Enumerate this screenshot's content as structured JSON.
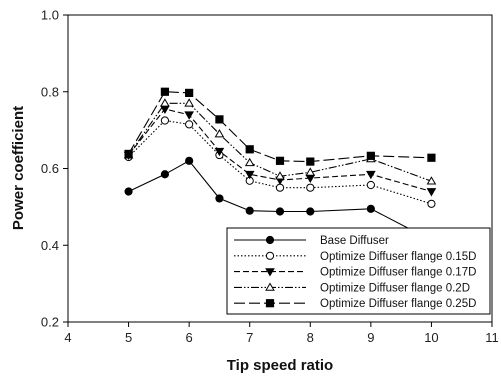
{
  "chart_data": {
    "type": "line",
    "title": "",
    "xlabel": "Tip speed ratio",
    "ylabel": "Power coefficient",
    "xlim": [
      4,
      11
    ],
    "ylim": [
      0.2,
      1.0
    ],
    "xticks": [
      "4",
      "5",
      "6",
      "7",
      "8",
      "9",
      "10",
      "11"
    ],
    "yticks": [
      "0.2",
      "0.4",
      "0.6",
      "0.8",
      "1.0"
    ],
    "grid": false,
    "legend_position": "bottom-right",
    "x": [
      5,
      5.6,
      6,
      6.5,
      7,
      7.5,
      8,
      9,
      10
    ],
    "series": [
      {
        "name": "Base Diffuser",
        "marker": "filled-circle",
        "dash": "solid",
        "values": [
          0.54,
          0.585,
          0.62,
          0.522,
          0.49,
          0.488,
          0.488,
          0.495,
          0.413
        ]
      },
      {
        "name": "Optimize Diffuser flange 0.15D",
        "marker": "open-circle",
        "dash": "dotted",
        "values": [
          0.63,
          0.725,
          0.715,
          0.635,
          0.568,
          0.55,
          0.55,
          0.557,
          0.508
        ]
      },
      {
        "name": "Optimize Diffuser flange 0.17D",
        "marker": "filled-triangle-down",
        "dash": "dashed",
        "values": [
          0.635,
          0.755,
          0.74,
          0.645,
          0.585,
          0.57,
          0.575,
          0.585,
          0.54
        ]
      },
      {
        "name": "Optimize Diffuser flange 0.2D",
        "marker": "open-triangle-up",
        "dash": "dash-dot-dot",
        "values": [
          0.635,
          0.77,
          0.77,
          0.69,
          0.615,
          0.58,
          0.59,
          0.625,
          0.567
        ]
      },
      {
        "name": "Optimize Diffuser flange 0.25D",
        "marker": "filled-square",
        "dash": "long-dash",
        "values": [
          0.638,
          0.8,
          0.797,
          0.728,
          0.65,
          0.62,
          0.618,
          0.633,
          0.628
        ]
      }
    ]
  }
}
